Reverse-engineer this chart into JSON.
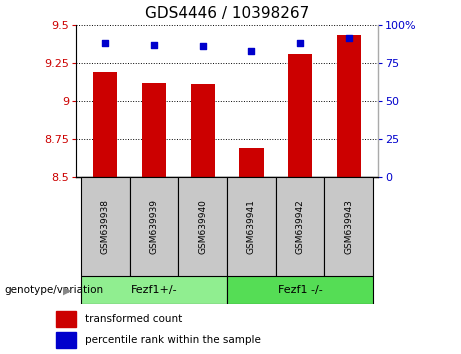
{
  "title": "GDS4446 / 10398267",
  "samples": [
    "GSM639938",
    "GSM639939",
    "GSM639940",
    "GSM639941",
    "GSM639942",
    "GSM639943"
  ],
  "bar_values": [
    9.19,
    9.12,
    9.11,
    8.69,
    9.31,
    9.43
  ],
  "percentile_values": [
    88,
    87,
    86,
    83,
    88,
    91
  ],
  "ylim_left": [
    8.5,
    9.5
  ],
  "ylim_right": [
    0,
    100
  ],
  "yticks_left": [
    8.5,
    8.75,
    9.0,
    9.25,
    9.5
  ],
  "ytick_labels_left": [
    "8.5",
    "8.75",
    "9",
    "9.25",
    "9.5"
  ],
  "yticks_right": [
    0,
    25,
    50,
    75,
    100
  ],
  "ytick_labels_right": [
    "0",
    "25",
    "50",
    "75",
    "100%"
  ],
  "bar_color": "#cc0000",
  "percentile_color": "#0000cc",
  "bar_width": 0.5,
  "group0_label": "Fezf1+/-",
  "group1_label": "Fezf1 -/-",
  "group0_color": "#90ee90",
  "group1_color": "#55dd55",
  "genotype_label": "genotype/variation",
  "legend_red_label": "transformed count",
  "legend_blue_label": "percentile rank within the sample",
  "bg_color": "#ffffff",
  "xlabel_bg": "#c8c8c8",
  "title_fontsize": 11,
  "tick_fontsize": 8,
  "sample_fontsize": 6.5,
  "group_fontsize": 8,
  "legend_fontsize": 7.5,
  "genotype_fontsize": 7.5
}
